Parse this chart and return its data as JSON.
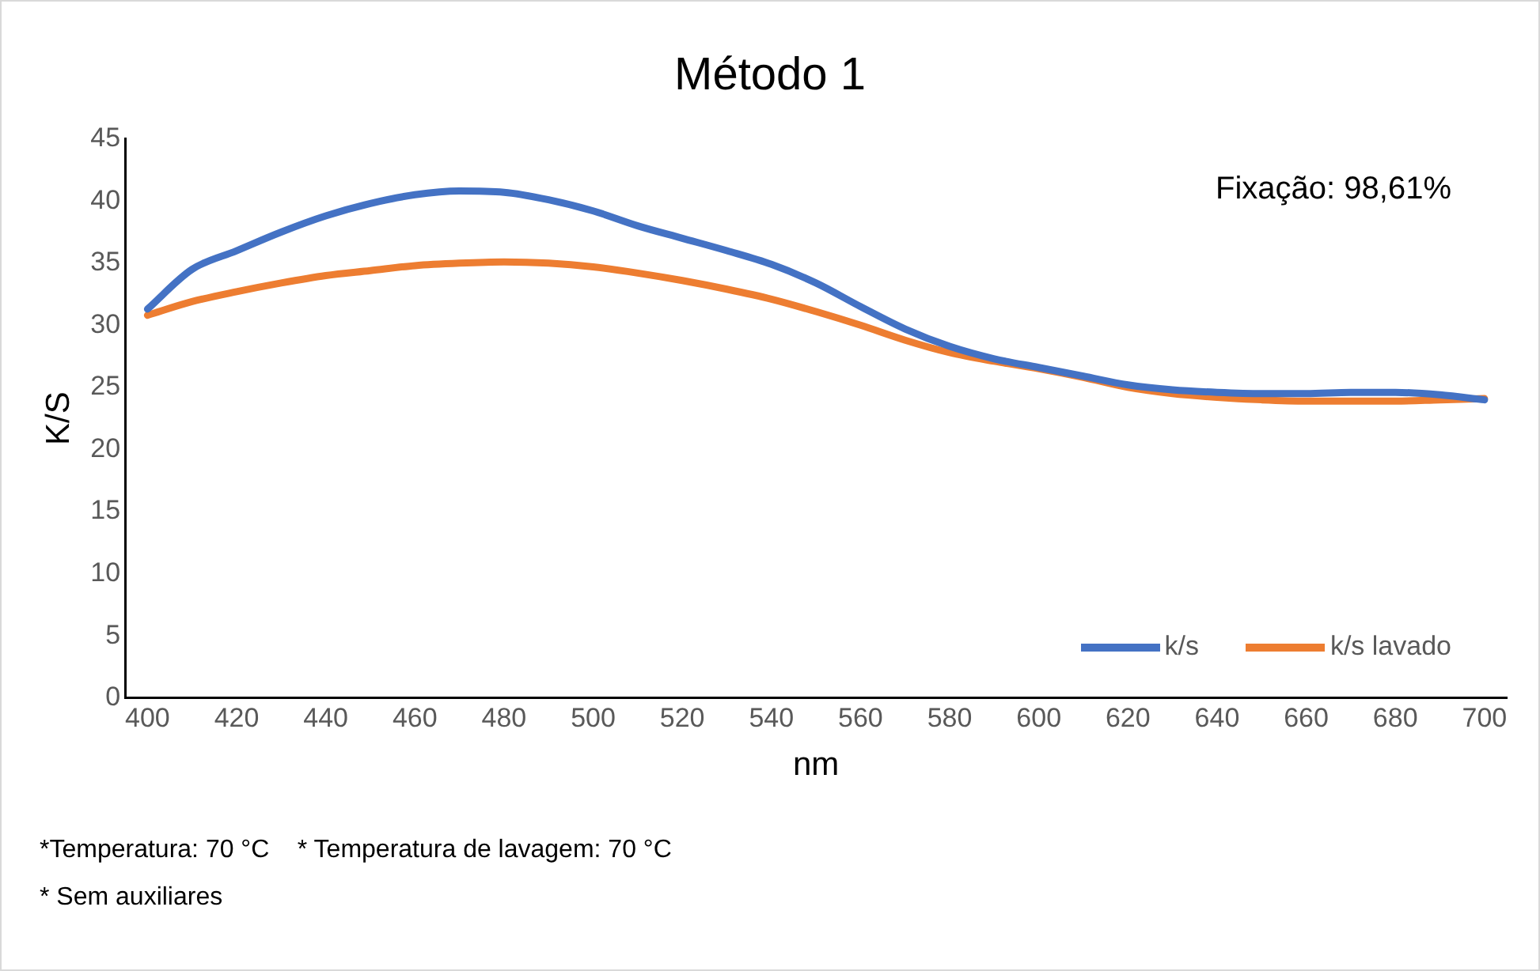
{
  "chart_data": {
    "type": "line",
    "title": "Método 1",
    "xlabel": "nm",
    "ylabel": "K/S",
    "x": [
      400,
      410,
      420,
      430,
      440,
      450,
      460,
      470,
      480,
      490,
      500,
      510,
      520,
      530,
      540,
      550,
      560,
      570,
      580,
      590,
      600,
      610,
      620,
      630,
      640,
      650,
      660,
      670,
      680,
      690,
      700
    ],
    "series": [
      {
        "name": "k/s",
        "color": "#4472c4",
        "values": [
          31.3,
          34.5,
          36,
          37.5,
          38.8,
          39.8,
          40.5,
          40.8,
          40.7,
          40.1,
          39.2,
          38,
          37,
          36,
          34.9,
          33.4,
          31.5,
          29.7,
          28.3,
          27.3,
          26.6,
          25.9,
          25.2,
          24.8,
          24.6,
          24.5,
          24.5,
          24.6,
          24.6,
          24.4,
          24
        ]
      },
      {
        "name": "k/s lavado",
        "color": "#ed7d31",
        "values": [
          30.8,
          31.9,
          32.7,
          33.4,
          34,
          34.4,
          34.8,
          35,
          35.1,
          35,
          34.7,
          34.2,
          33.6,
          32.9,
          32.1,
          31.1,
          30,
          28.8,
          27.8,
          27.1,
          26.5,
          25.8,
          25,
          24.5,
          24.2,
          24,
          23.9,
          23.9,
          23.9,
          24,
          24.1
        ]
      }
    ],
    "xlim": [
      395,
      705
    ],
    "xticks": [
      400,
      420,
      440,
      460,
      480,
      500,
      520,
      540,
      560,
      580,
      600,
      620,
      640,
      660,
      680,
      700
    ],
    "ylim": [
      0,
      45
    ],
    "yticks": [
      0,
      5,
      10,
      15,
      20,
      25,
      30,
      35,
      40,
      45
    ],
    "grid": false,
    "legend": "bottom right",
    "marker": "none",
    "line_style": "solid",
    "annotations": [
      "Fixação: 98,61%",
      "*Temperatura: 70 °C    * Temperatura de lavagem: 70 °C",
      "* Sem auxiliares"
    ]
  }
}
